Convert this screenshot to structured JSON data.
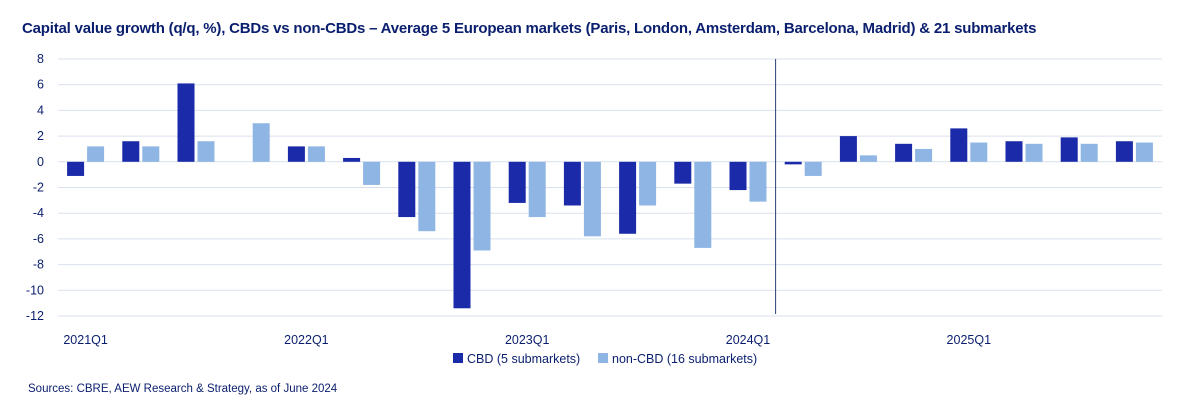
{
  "title": "Capital value growth (q/q, %), CBDs vs non-CBDs – Average 5 European markets (Paris, London, Amsterdam, Barcelona, Madrid) & 21 submarkets",
  "source": "Sources: CBRE, AEW Research & Strategy, as of June 2024",
  "colors": {
    "cbd": "#1a2aa8",
    "non_cbd": "#8eb5e3",
    "grid": "#d9e1ee",
    "text": "#0a1e6e"
  },
  "chart_data": {
    "type": "bar",
    "categories": [
      "2021Q1",
      "2021Q2",
      "2021Q3",
      "2021Q4",
      "2022Q1",
      "2022Q2",
      "2022Q3",
      "2022Q4",
      "2023Q1",
      "2023Q2",
      "2023Q3",
      "2023Q4",
      "2024Q1",
      "2024Q2",
      "2024Q3",
      "2024Q4",
      "2025Q1",
      "2025Q2",
      "2025Q3",
      "2025Q4"
    ],
    "tick_labels": [
      {
        "index": 0,
        "label": "2021Q1"
      },
      {
        "index": 4,
        "label": "2022Q1"
      },
      {
        "index": 8,
        "label": "2023Q1"
      },
      {
        "index": 12,
        "label": "2024Q1"
      },
      {
        "index": 16,
        "label": "2025Q1"
      }
    ],
    "y_ticks": [
      8,
      6,
      4,
      2,
      0,
      -2,
      -4,
      -6,
      -8,
      -10,
      -12
    ],
    "ylim": [
      -12,
      8
    ],
    "grid": true,
    "legend_position": "bottom-center",
    "forecast_divider_after_category": "2024Q1",
    "series": [
      {
        "name": "CBD (5 submarkets)",
        "values": [
          -1.1,
          1.6,
          6.1,
          0.0,
          1.2,
          0.3,
          -4.3,
          -11.4,
          -3.2,
          -3.4,
          -5.6,
          -1.7,
          -2.2,
          -0.2,
          2.0,
          1.4,
          2.6,
          1.6,
          1.9,
          1.6
        ]
      },
      {
        "name": "non-CBD (16 submarkets)",
        "values": [
          1.2,
          1.2,
          1.6,
          3.0,
          1.2,
          -1.8,
          -5.4,
          -6.9,
          -4.3,
          -5.8,
          -3.4,
          -6.7,
          -3.1,
          -1.1,
          0.5,
          1.0,
          1.5,
          1.4,
          1.4,
          1.5
        ]
      }
    ]
  }
}
